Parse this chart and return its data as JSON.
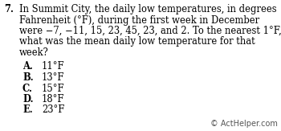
{
  "question_number": "7.",
  "question_text_lines": [
    "In Summit City, the daily low temperatures, in degrees",
    "Fahrenheit (°F), during the first week in December",
    "were −7, −11, 15, 23, 45, 23, and 2. To the nearest 1°F,",
    "what was the mean daily low temperature for that",
    "week?"
  ],
  "choices": [
    {
      "letter": "A.",
      "text": "11°F"
    },
    {
      "letter": "B.",
      "text": "13°F"
    },
    {
      "letter": "C.",
      "text": "15°F"
    },
    {
      "letter": "D.",
      "text": "18°F"
    },
    {
      "letter": "E.",
      "text": "23°F"
    }
  ],
  "footer": "© ActHelper.com",
  "background_color": "#ffffff",
  "text_color": "#000000",
  "font_size_body": 8.3,
  "font_size_footer": 7.0,
  "fig_width": 3.5,
  "fig_height": 1.63,
  "dpi": 100
}
